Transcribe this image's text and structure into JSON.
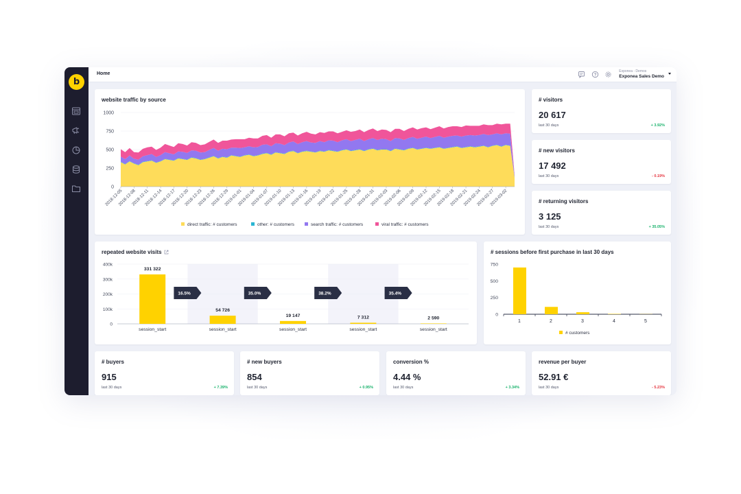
{
  "topbar": {
    "breadcrumb": "Home",
    "account_sub": "Exponea - Demos",
    "account_main": "Exponea Sales Demo"
  },
  "logo_letter": "b",
  "sidebar_icons": [
    "dashboard-icon",
    "campaign-icon",
    "analytics-icon",
    "database-icon",
    "folder-icon"
  ],
  "topbar_icons": [
    "chat-icon",
    "help-icon",
    "settings-icon"
  ],
  "colors": {
    "brand": "#ffd200",
    "sidebar": "#1d1d2e",
    "direct": "#fedc5a",
    "other": "#2bb6d3",
    "search": "#9278f0",
    "viral": "#f0559a",
    "positive": "#18b26b",
    "negative": "#e5333d",
    "funnel_bar": "#ffd200",
    "funnel_arrow": "#2a2f45"
  },
  "kpis": {
    "visitors": {
      "title": "# visitors",
      "value": "20 617",
      "sub": "last 30 days",
      "change": "+ 3.92%",
      "trend": "pos"
    },
    "new_visitors": {
      "title": "# new visitors",
      "value": "17 492",
      "sub": "last 30 days",
      "change": "- 0.19%",
      "trend": "neg"
    },
    "returning_visitors": {
      "title": "# returning visitors",
      "value": "3 125",
      "sub": "last 30 days",
      "change": "+ 35.05%",
      "trend": "pos"
    },
    "buyers": {
      "title": "# buyers",
      "value": "915",
      "sub": "last 30 days",
      "change": "+ 7.39%",
      "trend": "pos"
    },
    "new_buyers": {
      "title": "# new buyers",
      "value": "854",
      "sub": "last 30 days",
      "change": "+ 0.95%",
      "trend": "pos"
    },
    "conversion": {
      "title": "conversion %",
      "value": "4.44 %",
      "sub": "last 30 days",
      "change": "+ 3.34%",
      "trend": "pos"
    },
    "revenue": {
      "title": "revenue per buyer",
      "value": "52.91 €",
      "sub": "last 30 days",
      "change": "- 5.23%",
      "trend": "neg"
    }
  },
  "traffic_card": {
    "title": "website traffic by source"
  },
  "funnel_card": {
    "title": "repeated website visits"
  },
  "sessions_card": {
    "title": "# sessions before first purchase in last 30 days"
  },
  "chart_data": [
    {
      "type": "area",
      "stacked": true,
      "title": "website traffic by source",
      "ylim": [
        0,
        1000
      ],
      "yticks": [
        0,
        250,
        500,
        750,
        1000
      ],
      "grid": true,
      "legend_position": "bottom",
      "xtick_labels": [
        "2018-12-05",
        "2018-12-08",
        "2018-12-11",
        "2018-12-14",
        "2018-12-17",
        "2018-12-20",
        "2018-12-23",
        "2018-12-26",
        "2018-12-29",
        "2019-01-01",
        "2019-01-04",
        "2019-01-07",
        "2019-01-10",
        "2019-01-13",
        "2019-01-16",
        "2019-01-19",
        "2019-01-22",
        "2019-01-25",
        "2019-01-28",
        "2019-01-31",
        "2019-02-03",
        "2019-02-06",
        "2019-02-09",
        "2019-02-12",
        "2019-02-15",
        "2019-02-18",
        "2019-02-21",
        "2019-02-24",
        "2019-02-27",
        "2019-03-02"
      ],
      "x": [
        "2018-12-05",
        "2018-12-06",
        "2018-12-07",
        "2018-12-08",
        "2018-12-09",
        "2018-12-10",
        "2018-12-11",
        "2018-12-12",
        "2018-12-13",
        "2018-12-14",
        "2018-12-15",
        "2018-12-16",
        "2018-12-17",
        "2018-12-18",
        "2018-12-19",
        "2018-12-20",
        "2018-12-21",
        "2018-12-22",
        "2018-12-23",
        "2018-12-24",
        "2018-12-25",
        "2018-12-26",
        "2018-12-27",
        "2018-12-28",
        "2018-12-29",
        "2018-12-30",
        "2018-12-31",
        "2019-01-01",
        "2019-01-02",
        "2019-01-03",
        "2019-01-04",
        "2019-01-05",
        "2019-01-06",
        "2019-01-07",
        "2019-01-08",
        "2019-01-09",
        "2019-01-10",
        "2019-01-11",
        "2019-01-12",
        "2019-01-13",
        "2019-01-14",
        "2019-01-15",
        "2019-01-16",
        "2019-01-17",
        "2019-01-18",
        "2019-01-19",
        "2019-01-20",
        "2019-01-21",
        "2019-01-22",
        "2019-01-23",
        "2019-01-24",
        "2019-01-25",
        "2019-01-26",
        "2019-01-27",
        "2019-01-28",
        "2019-01-29",
        "2019-01-30",
        "2019-01-31",
        "2019-02-01",
        "2019-02-02",
        "2019-02-03",
        "2019-02-04",
        "2019-02-05",
        "2019-02-06",
        "2019-02-07",
        "2019-02-08",
        "2019-02-09",
        "2019-02-10",
        "2019-02-11",
        "2019-02-12",
        "2019-02-13",
        "2019-02-14",
        "2019-02-15",
        "2019-02-16",
        "2019-02-17",
        "2019-02-18",
        "2019-02-19",
        "2019-02-20",
        "2019-02-21",
        "2019-02-22",
        "2019-02-23",
        "2019-02-24",
        "2019-02-25",
        "2019-02-26",
        "2019-02-27",
        "2019-02-28",
        "2019-03-01",
        "2019-03-02",
        "2019-03-03",
        "2019-03-04"
      ],
      "series": [
        {
          "name": "direct traffic: # customers",
          "color": "#fedc5a",
          "values": [
            330,
            300,
            340,
            310,
            290,
            330,
            340,
            350,
            320,
            340,
            370,
            360,
            350,
            380,
            370,
            360,
            390,
            380,
            360,
            370,
            390,
            410,
            380,
            400,
            390,
            420,
            410,
            400,
            420,
            430,
            410,
            420,
            440,
            450,
            430,
            460,
            450,
            440,
            470,
            480,
            450,
            470,
            480,
            470,
            460,
            480,
            470,
            490,
            480,
            470,
            490,
            500,
            480,
            490,
            500,
            480,
            500,
            510,
            490,
            500,
            500,
            480,
            510,
            500,
            490,
            510,
            520,
            500,
            510,
            520,
            510,
            520,
            530,
            510,
            520,
            530,
            540,
            520,
            530,
            540,
            530,
            540,
            550,
            530,
            550,
            560,
            540,
            560,
            550,
            120
          ]
        },
        {
          "name": "other: # customers",
          "color": "#2bb6d3",
          "values": [
            5,
            5,
            5,
            5,
            5,
            5,
            5,
            5,
            5,
            5,
            5,
            5,
            5,
            5,
            5,
            5,
            5,
            5,
            5,
            5,
            5,
            5,
            5,
            5,
            5,
            5,
            5,
            5,
            5,
            5,
            5,
            5,
            5,
            5,
            5,
            5,
            5,
            5,
            5,
            5,
            5,
            5,
            5,
            5,
            5,
            5,
            5,
            5,
            5,
            5,
            5,
            5,
            5,
            5,
            5,
            5,
            5,
            5,
            5,
            5,
            5,
            5,
            5,
            5,
            5,
            5,
            5,
            5,
            5,
            5,
            5,
            5,
            5,
            5,
            5,
            5,
            5,
            5,
            5,
            5,
            5,
            5,
            5,
            5,
            5,
            5,
            5,
            5,
            5,
            5
          ]
        },
        {
          "name": "search traffic: # customers",
          "color": "#9278f0",
          "values": [
            70,
            65,
            75,
            60,
            70,
            75,
            80,
            85,
            75,
            80,
            90,
            85,
            80,
            90,
            95,
            90,
            95,
            100,
            95,
            90,
            100,
            105,
            100,
            105,
            110,
            100,
            110,
            115,
            105,
            110,
            115,
            110,
            120,
            115,
            110,
            120,
            125,
            115,
            120,
            125,
            120,
            125,
            130,
            120,
            125,
            130,
            125,
            130,
            135,
            125,
            130,
            135,
            130,
            135,
            140,
            130,
            135,
            140,
            135,
            140,
            135,
            130,
            140,
            145,
            135,
            140,
            145,
            140,
            145,
            150,
            140,
            145,
            150,
            145,
            150,
            150,
            145,
            150,
            155,
            150,
            155,
            150,
            155,
            160,
            150,
            155,
            160,
            155,
            160,
            20
          ]
        },
        {
          "name": "viral traffic: # customers",
          "color": "#f0559a",
          "values": [
            100,
            95,
            100,
            90,
            95,
            100,
            105,
            100,
            95,
            100,
            110,
            105,
            100,
            110,
            105,
            100,
            110,
            105,
            100,
            105,
            110,
            115,
            105,
            110,
            115,
            110,
            115,
            120,
            110,
            115,
            120,
            115,
            120,
            125,
            115,
            120,
            125,
            120,
            125,
            120,
            115,
            120,
            125,
            120,
            115,
            120,
            125,
            120,
            125,
            120,
            115,
            120,
            125,
            120,
            125,
            120,
            125,
            130,
            120,
            125,
            125,
            120,
            125,
            130,
            120,
            125,
            130,
            125,
            130,
            125,
            120,
            125,
            130,
            125,
            130,
            130,
            125,
            130,
            135,
            125,
            130,
            125,
            130,
            135,
            125,
            130,
            135,
            130,
            135,
            10
          ]
        }
      ]
    },
    {
      "type": "bar",
      "title": "repeated website visits",
      "ylim": [
        0,
        400000
      ],
      "ytick_labels": [
        "0",
        "100k",
        "200k",
        "300k",
        "400k"
      ],
      "categories": [
        "session_start",
        "session_start",
        "session_start",
        "session_start",
        "session_start"
      ],
      "values": [
        331322,
        54726,
        19147,
        7312,
        2590
      ],
      "value_labels": [
        "331 322",
        "54 726",
        "19 147",
        "7 312",
        "2 590"
      ],
      "step_rates": [
        "16.5%",
        "35.0%",
        "38.2%",
        "35.4%"
      ]
    },
    {
      "type": "bar",
      "title": "# sessions before first purchase in last 30 days",
      "ylim": [
        0,
        750
      ],
      "ytick_labels": [
        "0",
        "250",
        "500",
        "750"
      ],
      "categories": [
        "1",
        "2",
        "3",
        "4",
        "5"
      ],
      "series": [
        {
          "name": "# customers",
          "values": [
            700,
            110,
            30,
            5,
            2
          ]
        }
      ],
      "legend_position": "bottom"
    }
  ]
}
